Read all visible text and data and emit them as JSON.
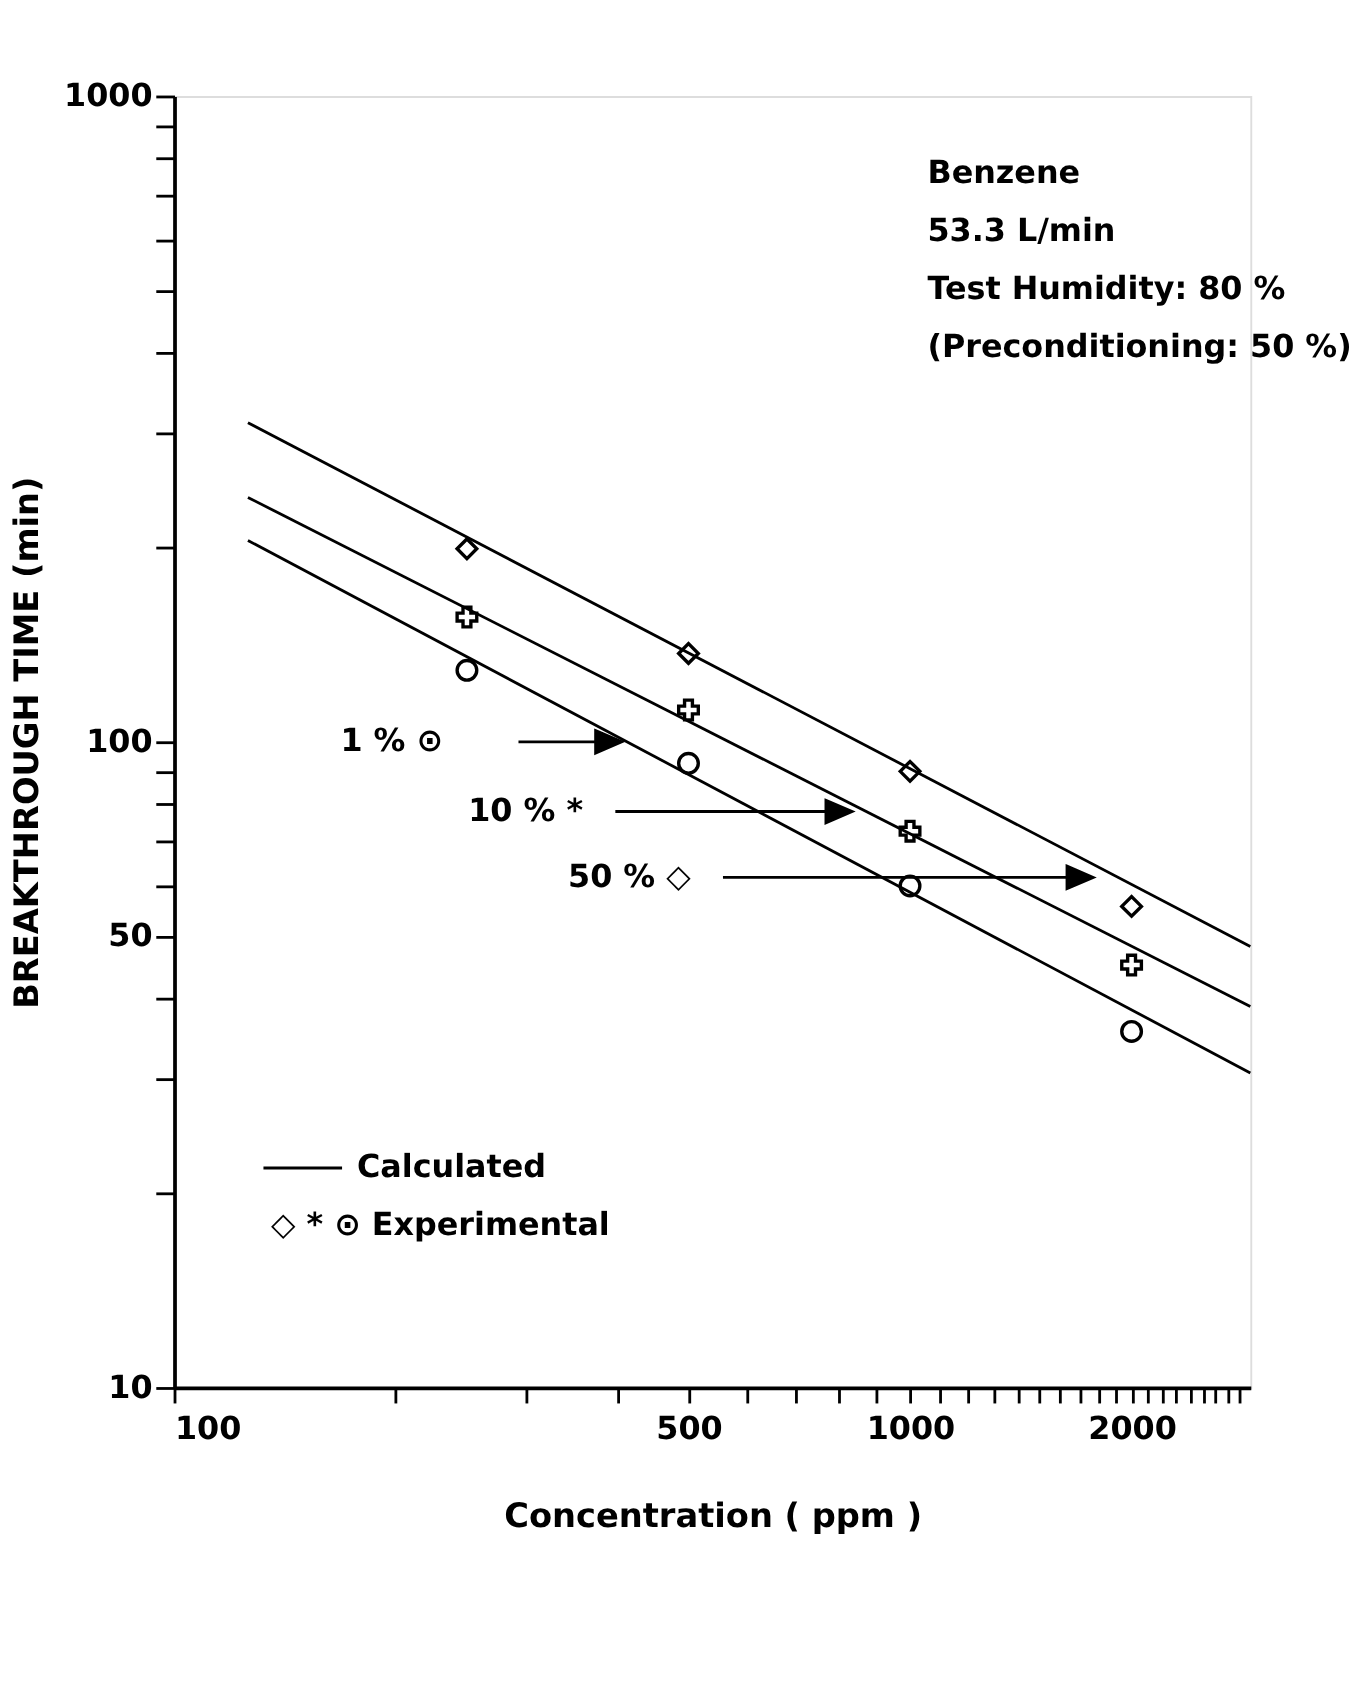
{
  "chart_data": {
    "type": "scatter",
    "xlabel": "Concentration ( ppm )",
    "ylabel": "BREAKTHROUGH TIME (min)",
    "log": "xy",
    "grid": false,
    "xlim": [
      100,
      2900
    ],
    "ylim": [
      10,
      1000
    ],
    "xticks": [
      100,
      {
        "value": 200,
        "label": null
      },
      {
        "value": 300,
        "label": null
      },
      {
        "value": 400,
        "label": null
      },
      500,
      {
        "value": 600,
        "label": null
      },
      {
        "value": 700,
        "label": null
      },
      {
        "value": 800,
        "label": null
      },
      {
        "value": 900,
        "label": null
      },
      1000,
      {
        "value": 1100,
        "label": null
      },
      {
        "value": 1200,
        "label": null
      },
      {
        "value": 1300,
        "label": null
      },
      {
        "value": 1400,
        "label": null
      },
      {
        "value": 1500,
        "label": null
      },
      {
        "value": 1600,
        "label": null
      },
      {
        "value": 1700,
        "label": null
      },
      {
        "value": 1800,
        "label": null
      },
      {
        "value": 1900,
        "label": null
      },
      2000,
      {
        "value": 2100,
        "label": null
      },
      {
        "value": 2200,
        "label": null
      },
      {
        "value": 2300,
        "label": null
      },
      {
        "value": 2400,
        "label": null
      },
      {
        "value": 2500,
        "label": null
      },
      {
        "value": 2600,
        "label": null
      },
      {
        "value": 2700,
        "label": null
      },
      {
        "value": 2800,
        "label": null
      }
    ],
    "yticks": [
      10,
      {
        "value": 20,
        "label": null
      },
      {
        "value": 30,
        "label": null
      },
      {
        "value": 40,
        "label": null
      },
      50,
      {
        "value": 60,
        "label": null
      },
      {
        "value": 70,
        "label": null
      },
      {
        "value": 80,
        "label": null
      },
      {
        "value": 90,
        "label": null
      },
      100,
      {
        "value": 200,
        "label": null
      },
      {
        "value": 300,
        "label": null
      },
      {
        "value": 400,
        "label": null
      },
      {
        "value": 500,
        "label": null
      },
      {
        "value": 600,
        "label": null
      },
      {
        "value": 700,
        "label": null
      },
      {
        "value": 800,
        "label": null
      },
      {
        "value": 900,
        "label": null
      },
      1000
    ],
    "series": [
      {
        "type": "line",
        "color": "#000000",
        "marker": "none",
        "x": [
          126,
          2900
        ],
        "values": [
          312,
          48.2
        ]
      },
      {
        "type": "line",
        "color": "#000000",
        "marker": "none",
        "x": [
          126,
          2900
        ],
        "values": [
          239,
          38.9
        ]
      },
      {
        "type": "line",
        "color": "#000000",
        "marker": "none",
        "x": [
          126,
          2900
        ],
        "values": [
          205,
          30.7
        ]
      },
      {
        "type": "scatter",
        "color": "#000000",
        "marker": "diamond",
        "x": [
          250,
          500,
          1000,
          2000
        ],
        "values": [
          199,
          137,
          90,
          55.6
        ]
      },
      {
        "type": "scatter",
        "color": "#000000",
        "marker": "cross",
        "x": [
          250,
          500,
          1000,
          2000
        ],
        "values": [
          156,
          112,
          72.7,
          45.1
        ]
      },
      {
        "type": "scatter",
        "color": "#000000",
        "marker": "circle",
        "x": [
          250,
          500,
          1000,
          2000
        ],
        "values": [
          129,
          92.6,
          59.8,
          35.6
        ]
      }
    ],
    "annotations": [
      "Benzene",
      "53.3 L/min",
      "Test Humidity:  80 %",
      "(Preconditioning: 50 %)",
      "Calculated",
      "◇ * ⊙ Experimental",
      "1 %  ⊙",
      "10 %  *",
      "50 %  ◇"
    ]
  }
}
